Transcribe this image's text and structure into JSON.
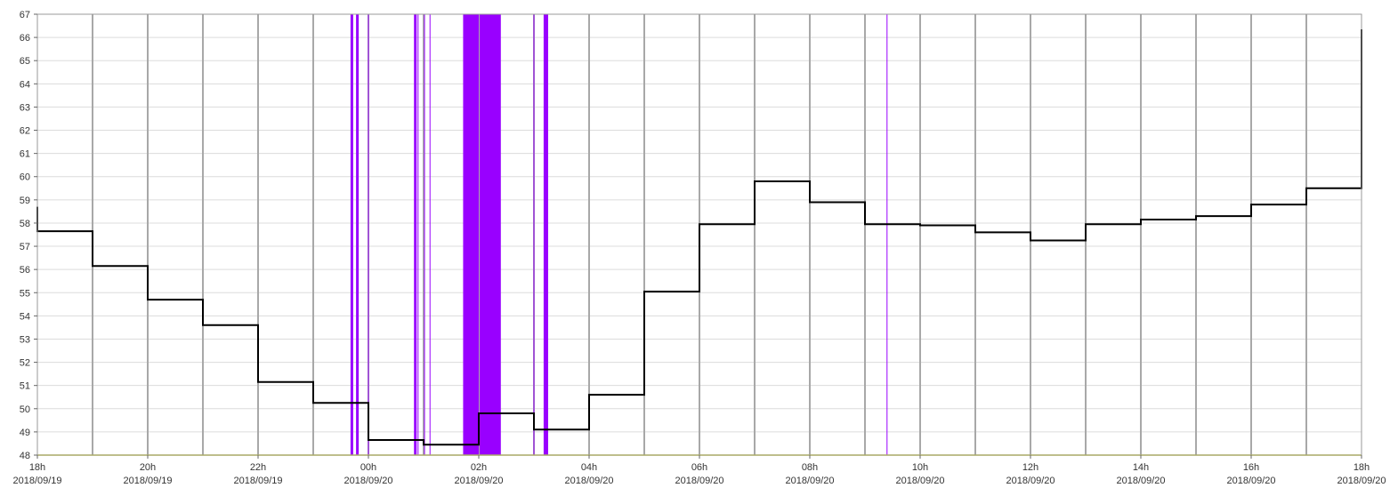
{
  "chart_data": {
    "type": "line",
    "subtype": "step",
    "title": "",
    "xlabel": "",
    "ylabel": "",
    "x_unit": "hours since 2018/09/19 18h",
    "xlim": [
      "2018-09-19T18:00",
      "2018-09-20T18:00"
    ],
    "ylim": [
      48,
      67
    ],
    "y_ticks": [
      48,
      49,
      50,
      51,
      52,
      53,
      54,
      55,
      56,
      57,
      58,
      59,
      60,
      61,
      62,
      63,
      64,
      65,
      66,
      67
    ],
    "x_ticks": [
      {
        "time": "2018-09-19T18:00",
        "label_top": "18h",
        "label_bottom": "2018/09/19"
      },
      {
        "time": "2018-09-19T20:00",
        "label_top": "20h",
        "label_bottom": "2018/09/19"
      },
      {
        "time": "2018-09-19T22:00",
        "label_top": "22h",
        "label_bottom": "2018/09/19"
      },
      {
        "time": "2018-09-20T00:00",
        "label_top": "00h",
        "label_bottom": "2018/09/20"
      },
      {
        "time": "2018-09-20T02:00",
        "label_top": "02h",
        "label_bottom": "2018/09/20"
      },
      {
        "time": "2018-09-20T04:00",
        "label_top": "04h",
        "label_bottom": "2018/09/20"
      },
      {
        "time": "2018-09-20T06:00",
        "label_top": "06h",
        "label_bottom": "2018/09/20"
      },
      {
        "time": "2018-09-20T08:00",
        "label_top": "08h",
        "label_bottom": "2018/09/20"
      },
      {
        "time": "2018-09-20T10:00",
        "label_top": "10h",
        "label_bottom": "2018/09/20"
      },
      {
        "time": "2018-09-20T12:00",
        "label_top": "12h",
        "label_bottom": "2018/09/20"
      },
      {
        "time": "2018-09-20T14:00",
        "label_top": "14h",
        "label_bottom": "2018/09/20"
      },
      {
        "time": "2018-09-20T16:00",
        "label_top": "16h",
        "label_bottom": "2018/09/20"
      },
      {
        "time": "2018-09-20T18:00",
        "label_top": "18h",
        "label_bottom": "2018/09/20"
      }
    ],
    "grid": {
      "vertical": true,
      "horizontal": true
    },
    "series": [
      {
        "color": "#000000",
        "x": [
          "2018-09-19T18:00",
          "2018-09-19T19:00",
          "2018-09-19T20:00",
          "2018-09-19T21:00",
          "2018-09-19T22:00",
          "2018-09-19T23:00",
          "2018-09-20T00:00",
          "2018-09-20T01:00",
          "2018-09-20T02:00",
          "2018-09-20T03:00",
          "2018-09-20T04:00",
          "2018-09-20T05:00",
          "2018-09-20T06:00",
          "2018-09-20T07:00",
          "2018-09-20T08:00",
          "2018-09-20T09:00",
          "2018-09-20T10:00",
          "2018-09-20T11:00",
          "2018-09-20T12:00",
          "2018-09-20T13:00",
          "2018-09-20T14:00",
          "2018-09-20T15:00",
          "2018-09-20T16:00",
          "2018-09-20T17:00",
          "2018-09-20T18:00"
        ],
        "values": [
          57.65,
          56.15,
          54.7,
          53.6,
          51.15,
          50.25,
          48.65,
          48.45,
          49.8,
          49.1,
          50.6,
          55.05,
          57.95,
          59.8,
          58.9,
          57.95,
          57.9,
          57.6,
          57.25,
          57.95,
          58.15,
          58.3,
          58.8,
          59.5,
          66.35
        ],
        "start_value": 58.7
      }
    ],
    "baseline": {
      "value": 48,
      "color": "#c8c800"
    },
    "event_markers": {
      "color": "#9900ff",
      "lines": [
        {
          "x": "2018-09-19T23:42",
          "width": "thick"
        },
        {
          "x": "2018-09-19T23:48",
          "width": "thick"
        },
        {
          "x": "2018-09-20T00:00",
          "width": "thin"
        },
        {
          "x": "2018-09-20T00:51",
          "width": "thick"
        },
        {
          "x": "2018-09-20T00:54",
          "width": "thin"
        },
        {
          "x": "2018-09-20T01:01",
          "width": "thin"
        },
        {
          "x": "2018-09-20T01:07",
          "width": "thin"
        },
        {
          "x": "2018-09-20T03:00",
          "width": "thin"
        },
        {
          "x": "2018-09-20T03:12",
          "width": "thick"
        },
        {
          "x": "2018-09-20T03:14",
          "width": "thick"
        },
        {
          "x": "2018-09-20T09:24",
          "width": "thin"
        }
      ],
      "bands": [
        {
          "start": "2018-09-20T01:43",
          "end": "2018-09-20T02:00"
        },
        {
          "start": "2018-09-20T02:01",
          "end": "2018-09-20T02:24"
        }
      ]
    },
    "legend": "none"
  }
}
